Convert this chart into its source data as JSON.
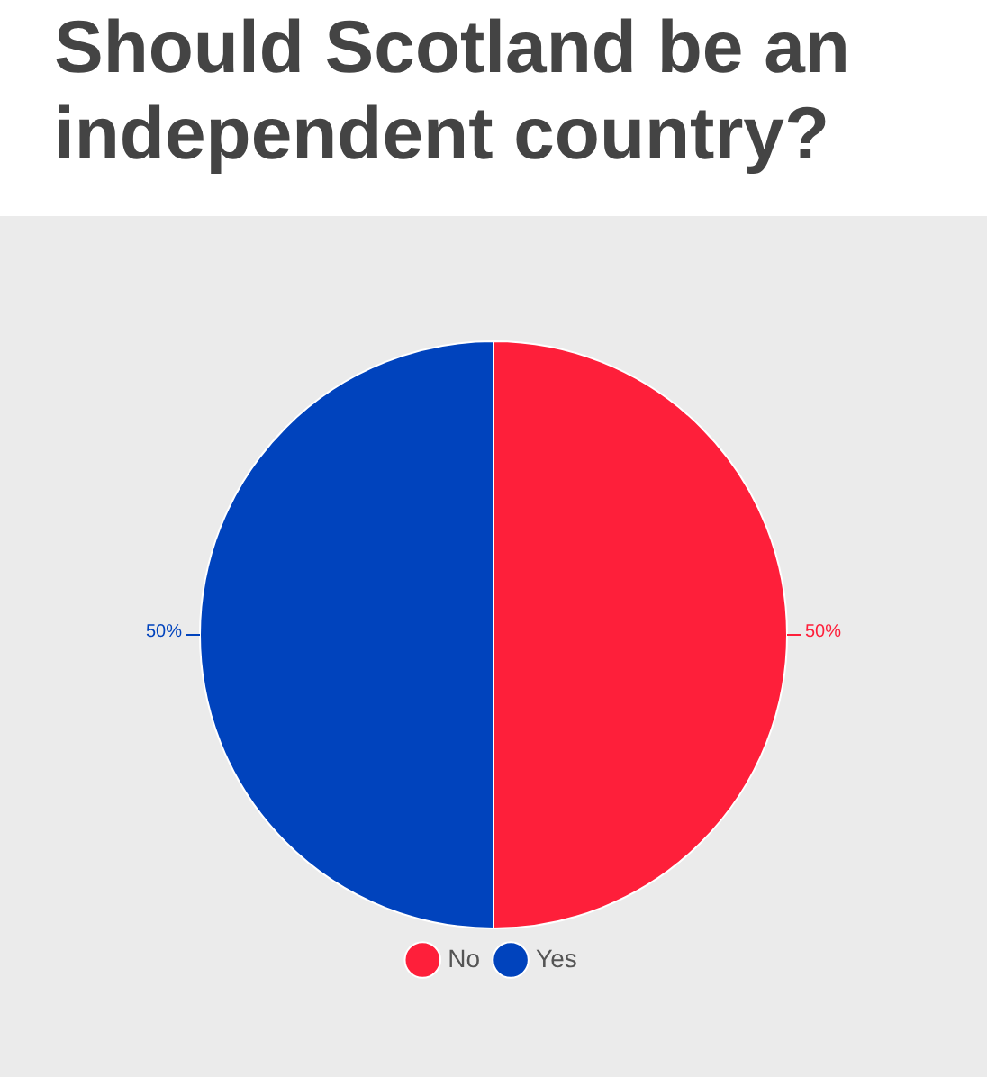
{
  "chart_data": {
    "type": "pie",
    "title": "Should Scotland be an independent country?",
    "categories": [
      "No",
      "Yes"
    ],
    "values": [
      50,
      50
    ],
    "colors": [
      "#fe1f3a",
      "#0043bd"
    ],
    "value_labels": [
      "50%",
      "50%"
    ],
    "legend": "bottom"
  }
}
